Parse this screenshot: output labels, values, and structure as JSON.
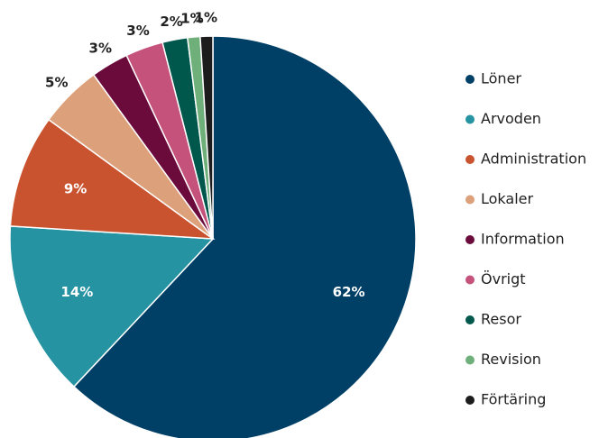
{
  "chart_data": {
    "type": "pie",
    "categories": [
      "Löner",
      "Arvoden",
      "Administration",
      "Lokaler",
      "Information",
      "Övrigt",
      "Resor",
      "Revision",
      "Förtäring"
    ],
    "values": [
      62,
      14,
      9,
      5,
      3,
      3,
      2,
      1,
      1
    ],
    "value_labels": [
      "62%",
      "14%",
      "9%",
      "5%",
      "3%",
      "3%",
      "2%",
      "1%",
      "1%"
    ],
    "colors": [
      "#003f66",
      "#2593a1",
      "#c9532f",
      "#dca07a",
      "#6b0b3c",
      "#c4527a",
      "#00574b",
      "#6fb07a",
      "#1c1c1c"
    ]
  }
}
